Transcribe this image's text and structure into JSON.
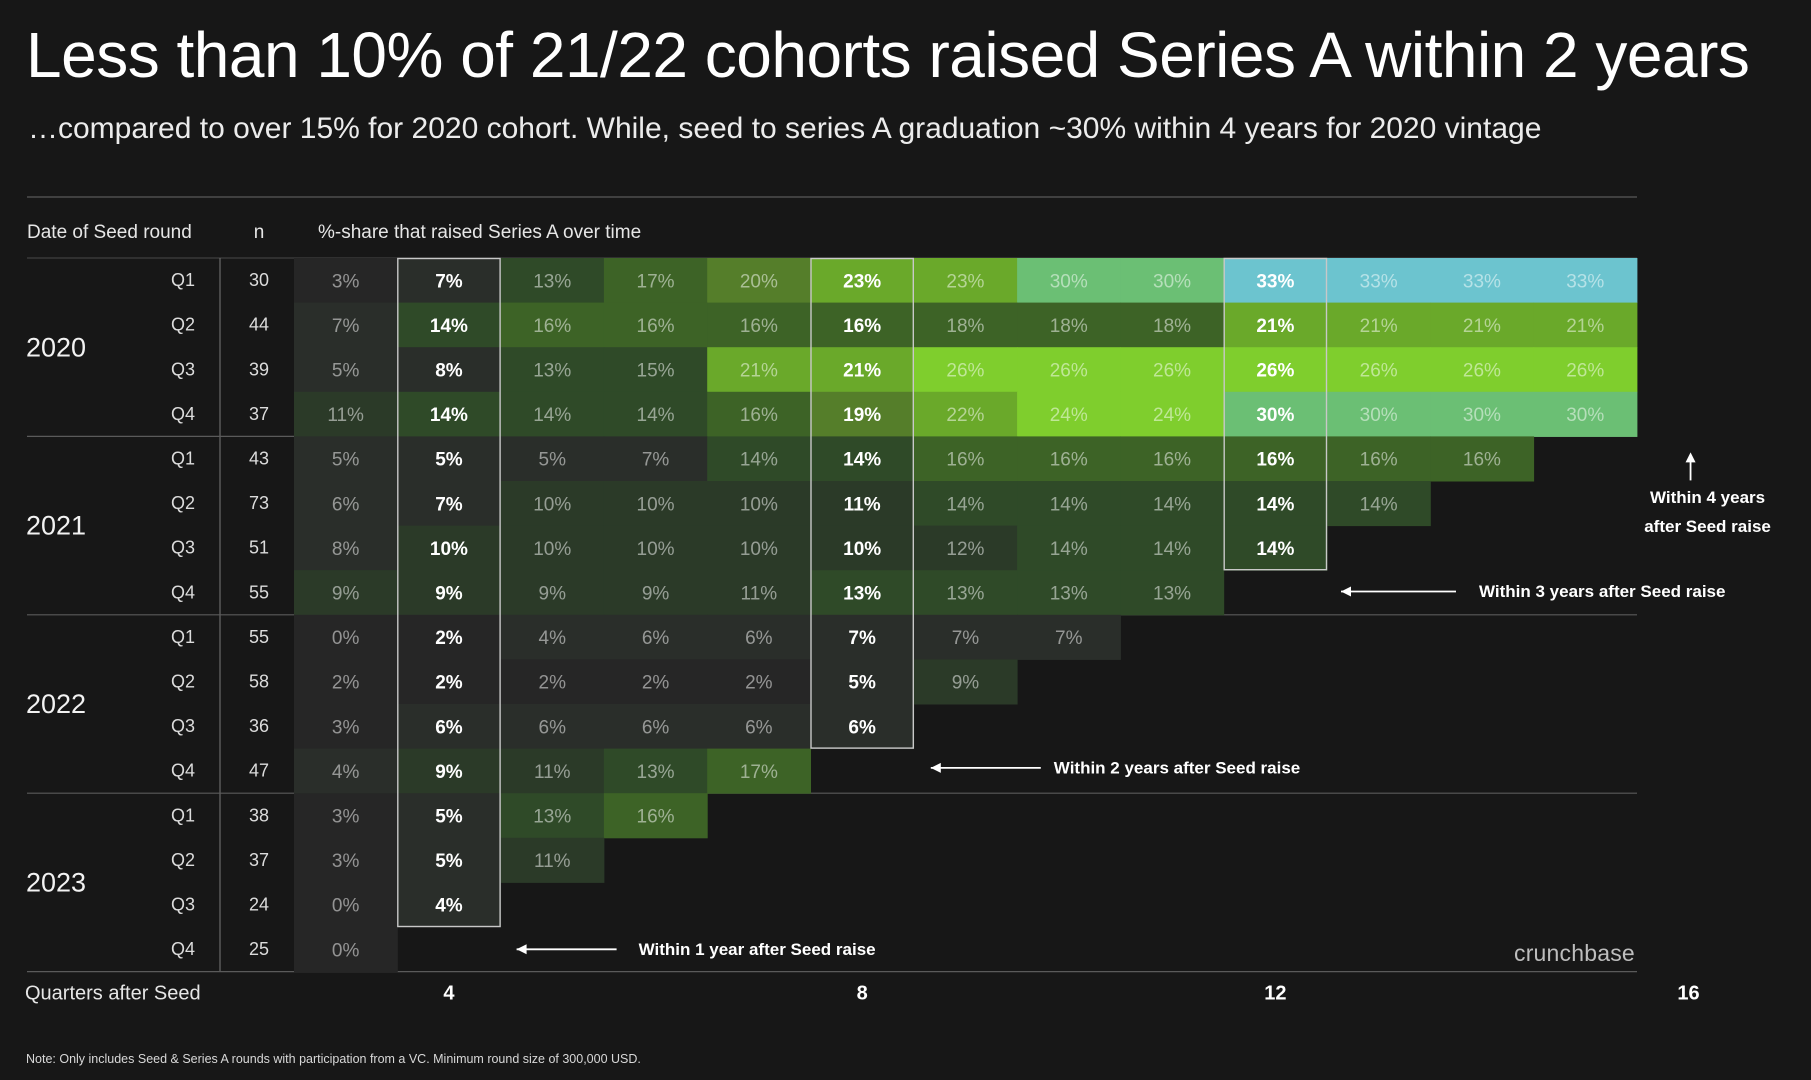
{
  "title": "Less than 10% of 21/22 cohorts raised Series A within 2 years",
  "subtitle": "…compared to over 15% for 2020 cohort.  While, seed to series A graduation ~30% within 4 years for 2020 vintage",
  "note": "Note: Only includes Seed & Series A rounds with participation from a VC. Minimum round size of 300,000 USD.",
  "brand": "crunchbase",
  "colors": {
    "background": "#171717",
    "gradient": [
      "#262626",
      "#2a2e2a",
      "#2b3a28",
      "#2f4a28",
      "#3d6326",
      "#557e2a",
      "#6aa92a",
      "#7fce2d",
      "#6bbf74",
      "#6cc4cf"
    ],
    "arrow": "#ffffff"
  },
  "chart_data": {
    "type": "heatmap",
    "title": "%-share that raised Series A over time",
    "header_cohort": "Date of Seed round",
    "header_n": "n",
    "xlabel": "Quarters after Seed",
    "x_ticks": [
      "4",
      "8",
      "12",
      "16"
    ],
    "x_tick_quarters": [
      4,
      8,
      12,
      16
    ],
    "quarters_after_seed": [
      3,
      4,
      5,
      6,
      7,
      8,
      9,
      10,
      11,
      12,
      13,
      14,
      15,
      16
    ],
    "highlight_quarters": [
      4,
      8,
      12,
      16
    ],
    "years": [
      {
        "year": "2020",
        "rows": [
          {
            "quarter": "Q1",
            "n": "30",
            "values": [
              3,
              7,
              13,
              17,
              20,
              23,
              23,
              30,
              30,
              33,
              33,
              33,
              33
            ]
          },
          {
            "quarter": "Q2",
            "n": "44",
            "values": [
              7,
              14,
              16,
              16,
              16,
              16,
              18,
              18,
              18,
              21,
              21,
              21,
              21
            ]
          },
          {
            "quarter": "Q3",
            "n": "39",
            "values": [
              5,
              8,
              13,
              15,
              21,
              21,
              26,
              26,
              26,
              26,
              26,
              26,
              26
            ]
          },
          {
            "quarter": "Q4",
            "n": "37",
            "values": [
              11,
              14,
              14,
              14,
              16,
              19,
              22,
              24,
              24,
              30,
              30,
              30,
              30
            ]
          }
        ]
      },
      {
        "year": "2021",
        "rows": [
          {
            "quarter": "Q1",
            "n": "43",
            "values": [
              5,
              5,
              5,
              7,
              14,
              14,
              16,
              16,
              16,
              16,
              16,
              16
            ]
          },
          {
            "quarter": "Q2",
            "n": "73",
            "values": [
              6,
              7,
              10,
              10,
              10,
              11,
              14,
              14,
              14,
              14,
              14
            ]
          },
          {
            "quarter": "Q3",
            "n": "51",
            "values": [
              8,
              10,
              10,
              10,
              10,
              10,
              12,
              14,
              14,
              14
            ]
          },
          {
            "quarter": "Q4",
            "n": "55",
            "values": [
              9,
              9,
              9,
              9,
              11,
              13,
              13,
              13,
              13
            ]
          }
        ]
      },
      {
        "year": "2022",
        "rows": [
          {
            "quarter": "Q1",
            "n": "55",
            "values": [
              0,
              2,
              4,
              6,
              6,
              7,
              7,
              7
            ]
          },
          {
            "quarter": "Q2",
            "n": "58",
            "values": [
              2,
              2,
              2,
              2,
              2,
              5,
              9
            ]
          },
          {
            "quarter": "Q3",
            "n": "36",
            "values": [
              3,
              6,
              6,
              6,
              6,
              6
            ]
          },
          {
            "quarter": "Q4",
            "n": "47",
            "values": [
              4,
              9,
              11,
              13,
              17
            ]
          }
        ]
      },
      {
        "year": "2023",
        "rows": [
          {
            "quarter": "Q1",
            "n": "38",
            "values": [
              3,
              5,
              13,
              16
            ]
          },
          {
            "quarter": "Q2",
            "n": "37",
            "values": [
              3,
              5,
              11
            ]
          },
          {
            "quarter": "Q3",
            "n": "24",
            "values": [
              0,
              4
            ]
          },
          {
            "quarter": "Q4",
            "n": "25",
            "values": [
              0
            ]
          }
        ]
      }
    ],
    "annotations": [
      {
        "text": "Within 1 year after Seed raise",
        "points_to_quarter": 4,
        "row": 15
      },
      {
        "text": "Within 2 years after Seed raise",
        "points_to_quarter": 8,
        "row": 11
      },
      {
        "text": "Within 3 years after Seed raise",
        "points_to_quarter": 12,
        "row": 7
      },
      {
        "text": "Within 4 years after Seed raise",
        "lines": [
          "Within 4 years",
          "after Seed raise"
        ],
        "points_to_quarter": 16,
        "row": 3
      }
    ]
  }
}
